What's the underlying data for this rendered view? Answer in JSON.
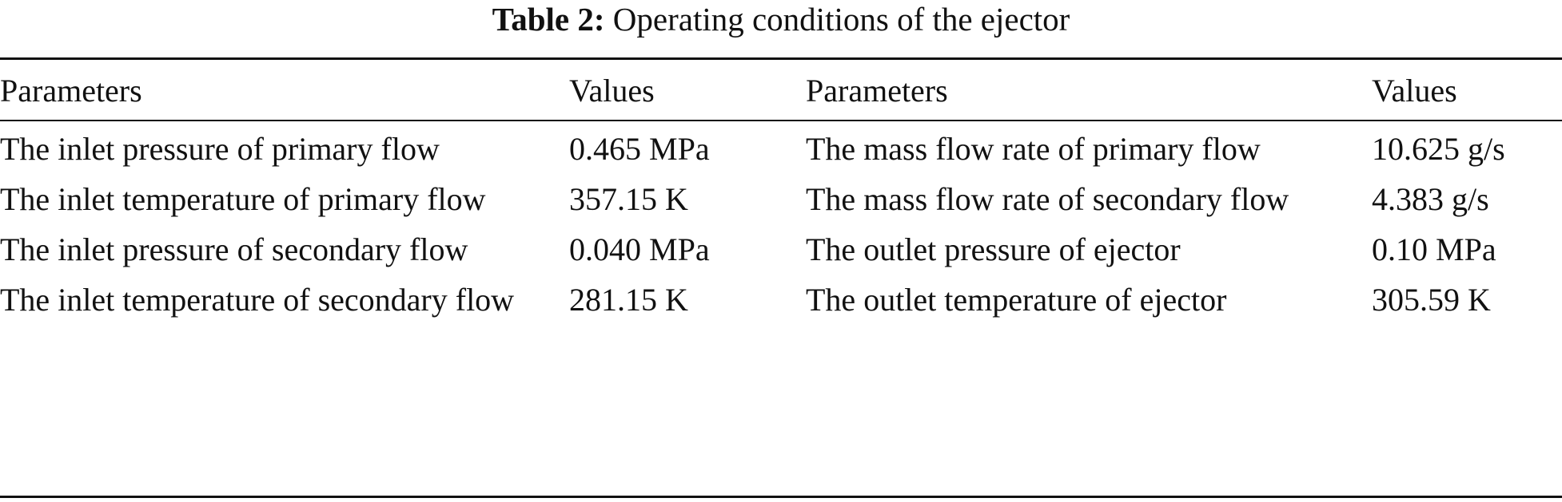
{
  "caption": {
    "label": "Table 2:",
    "text": "Operating conditions of the ejector"
  },
  "table": {
    "headers": [
      "Parameters",
      "Values",
      "Parameters",
      "Values"
    ],
    "rows": [
      [
        "The inlet pressure of primary flow",
        "0.465 MPa",
        "The mass flow rate of primary flow",
        "10.625 g/s"
      ],
      [
        "The inlet temperature of primary flow",
        "357.15 K",
        "The mass flow rate of secondary flow",
        "4.383 g/s"
      ],
      [
        "The inlet pressure of secondary flow",
        "0.040 MPa",
        "The outlet pressure of ejector",
        "0.10 MPa"
      ],
      [
        "The inlet temperature of secondary flow",
        "281.15 K",
        "The outlet temperature of ejector",
        "305.59 K"
      ]
    ]
  }
}
